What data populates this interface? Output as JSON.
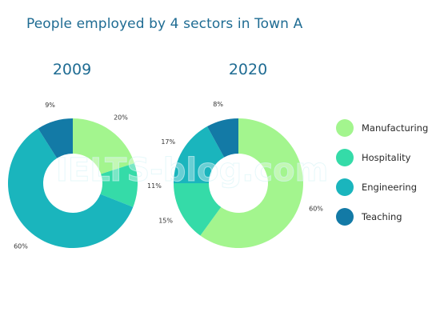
{
  "title": "People employed by 4 sectors in Town A",
  "watermark": "IELTS-blog.com",
  "colors": {
    "Manufacturing": "#a3f58e",
    "Hospitality": "#35dba8",
    "Engineering": "#1ab5bd",
    "Teaching": "#137aa6"
  },
  "chart_data": [
    {
      "type": "pie",
      "title": "2009",
      "categories": [
        "Manufacturing",
        "Hospitality",
        "Engineering",
        "Teaching"
      ],
      "values": [
        20,
        11,
        60,
        9
      ],
      "value_labels": [
        "20%",
        "11%",
        "60%",
        "9%"
      ]
    },
    {
      "type": "pie",
      "title": "2020",
      "categories": [
        "Manufacturing",
        "Hospitality",
        "Engineering",
        "Teaching"
      ],
      "values": [
        60,
        15,
        17,
        8
      ],
      "value_labels": [
        "60%",
        "15%",
        "17%",
        "8%"
      ]
    }
  ],
  "legend": {
    "placement": "right",
    "items": [
      "Manufacturing",
      "Hospitality",
      "Engineering",
      "Teaching"
    ]
  }
}
